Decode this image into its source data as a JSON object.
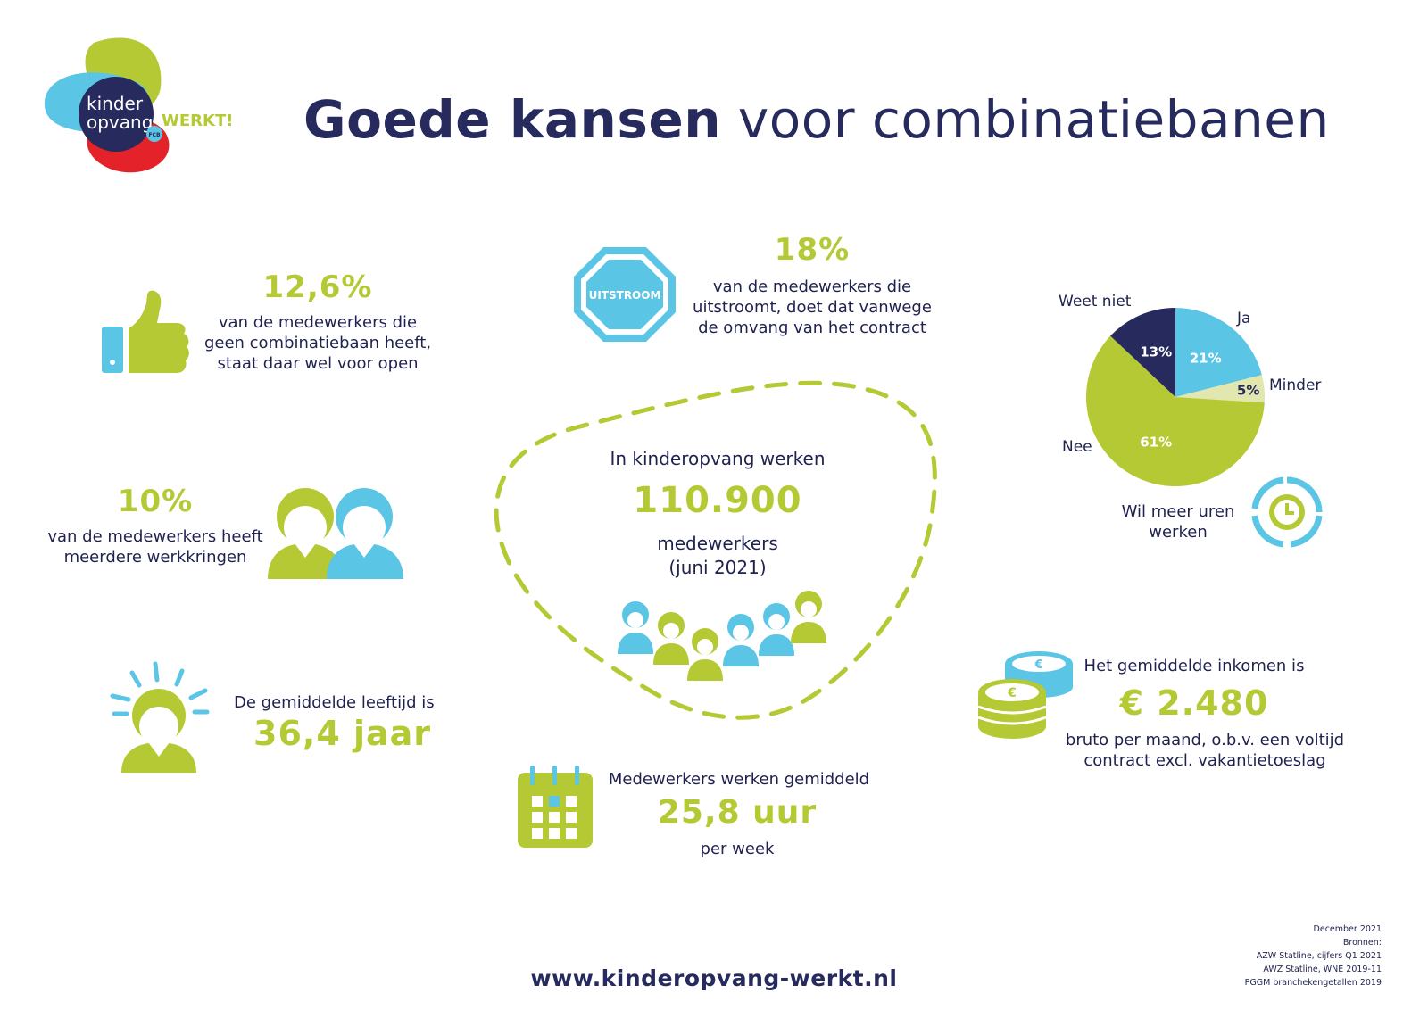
{
  "brand": {
    "logo_word1": "kinder",
    "logo_word2": "opvang",
    "logo_word3": "WERKT!",
    "logo_badge": "FCB"
  },
  "title": {
    "bold": "Goede kansen",
    "rest": " voor combinatiebanen"
  },
  "stats": {
    "open_to_combi": {
      "value": "12,6%",
      "text": [
        "van de medewerkers die",
        "geen combinatiebaan heeft,",
        "staat daar wel voor open"
      ]
    },
    "outflow": {
      "sign": "UITSTROOM",
      "value": "18%",
      "text": [
        "van de medewerkers die",
        "uitstroomt, doet dat vanwege",
        "de omvang van het contract"
      ]
    },
    "multiple_jobs": {
      "value": "10%",
      "text": [
        "van de medewerkers heeft",
        "meerdere werkkringen"
      ]
    },
    "employees": {
      "intro": "In kinderopvang werken",
      "value": "110.900",
      "text": [
        "medewerkers",
        "(juni 2021)"
      ]
    },
    "age": {
      "intro": "De gemiddelde leeftijd is",
      "value": "36,4 jaar"
    },
    "hours": {
      "intro": "Medewerkers werken gemiddeld",
      "value": "25,8 uur",
      "text": "per week"
    },
    "income": {
      "intro": "Het gemiddelde inkomen is",
      "value": "€ 2.480",
      "text": [
        "bruto per maand, o.b.v. een voltijd",
        "contract excl. vakantietoeslag"
      ]
    }
  },
  "chart_data": {
    "type": "pie",
    "title": "",
    "caption": [
      "Wil meer uren",
      "werken"
    ],
    "slices": [
      {
        "label": "Ja",
        "value": 21,
        "display": "21%",
        "color": "#5bc5e6"
      },
      {
        "label": "Minder",
        "value": 5,
        "display": "5%",
        "color": "#e1e7ae"
      },
      {
        "label": "Nee",
        "value": 61,
        "display": "61%",
        "color": "#b5c934"
      },
      {
        "label": "Weet niet",
        "value": 13,
        "display": "13%",
        "color": "#262a5c"
      }
    ]
  },
  "footer": {
    "url": "www.kinderopvang-werkt.nl",
    "sources": [
      "December 2021",
      "Bronnen:",
      "AZW Statline, cijfers Q1 2021",
      "AWZ Statline, WNE 2019-11",
      "PGGM branchekengetallen 2019"
    ]
  },
  "colors": {
    "green": "#b5c934",
    "blue": "#5bc5e6",
    "navy": "#262a5c",
    "red": "#e42229",
    "pale": "#e1e7ae"
  }
}
